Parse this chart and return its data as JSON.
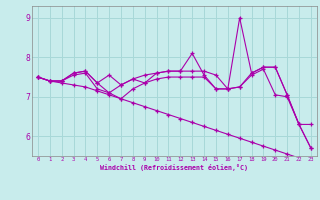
{
  "xlabel": "Windchill (Refroidissement éolien,°C)",
  "background_color": "#c8ecec",
  "grid_color": "#a8d8d8",
  "line_color": "#aa00aa",
  "x_values": [
    0,
    1,
    2,
    3,
    4,
    5,
    6,
    7,
    8,
    9,
    10,
    11,
    12,
    13,
    14,
    15,
    16,
    17,
    18,
    19,
    20,
    21,
    22,
    23
  ],
  "series1": [
    7.5,
    7.4,
    7.4,
    7.6,
    7.65,
    7.35,
    7.1,
    7.3,
    7.45,
    7.55,
    7.6,
    7.65,
    7.65,
    7.65,
    7.65,
    7.55,
    7.2,
    7.25,
    7.6,
    7.75,
    7.75,
    7.05,
    6.3,
    5.7
  ],
  "series2": [
    7.5,
    7.4,
    7.4,
    7.6,
    7.65,
    7.35,
    7.55,
    7.3,
    7.45,
    7.35,
    7.6,
    7.65,
    7.65,
    8.1,
    7.55,
    7.2,
    7.2,
    9.0,
    7.6,
    7.75,
    7.75,
    7.05,
    6.3,
    5.7
  ],
  "series3": [
    7.5,
    7.4,
    7.4,
    7.55,
    7.6,
    7.2,
    7.1,
    6.95,
    7.2,
    7.35,
    7.45,
    7.5,
    7.5,
    7.5,
    7.5,
    7.2,
    7.2,
    7.25,
    7.55,
    7.7,
    7.05,
    7.0,
    6.3,
    6.3
  ],
  "series4": [
    7.5,
    7.4,
    7.35,
    7.3,
    7.25,
    7.15,
    7.05,
    6.95,
    6.85,
    6.75,
    6.65,
    6.55,
    6.45,
    6.35,
    6.25,
    6.15,
    6.05,
    5.95,
    5.85,
    5.75,
    5.65,
    5.55,
    5.45,
    5.35
  ],
  "ylim": [
    5.5,
    9.3
  ],
  "xlim": [
    -0.5,
    23.5
  ],
  "yticks": [
    6,
    7,
    8,
    9
  ],
  "xticks": [
    0,
    1,
    2,
    3,
    4,
    5,
    6,
    7,
    8,
    9,
    10,
    11,
    12,
    13,
    14,
    15,
    16,
    17,
    18,
    19,
    20,
    21,
    22,
    23
  ]
}
